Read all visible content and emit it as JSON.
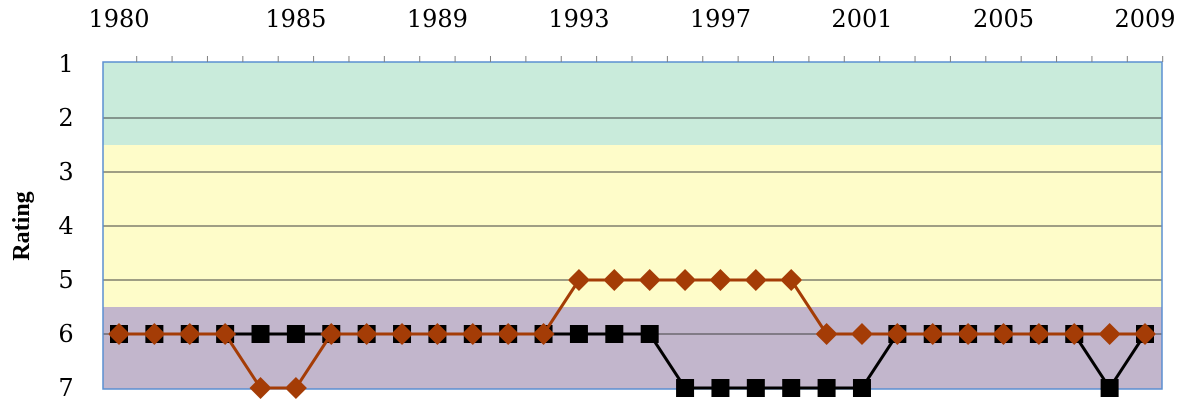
{
  "chart_data": {
    "type": "line",
    "title": "",
    "xlabel": "",
    "ylabel": "Rating",
    "x_range": [
      1980,
      2009
    ],
    "ylim": [
      1,
      7
    ],
    "y_inverted": true,
    "x_tick_labels": [
      "1980",
      "1985",
      "1989",
      "1993",
      "1997",
      "2001",
      "2005",
      "2009"
    ],
    "y_tick_labels": [
      "1",
      "2",
      "3",
      "4",
      "5",
      "6",
      "7"
    ],
    "grid": "horizontal",
    "bands": [
      {
        "from": 1,
        "to": 2.5,
        "color": "#c9ebdb"
      },
      {
        "from": 2.5,
        "to": 5.5,
        "color": "#fefcc9"
      },
      {
        "from": 5.5,
        "to": 7,
        "color": "#c2b6cc"
      }
    ],
    "x": [
      1980,
      1981,
      1982,
      1983,
      1984,
      1985,
      1986,
      1987,
      1988,
      1989,
      1990,
      1991,
      1992,
      1993,
      1994,
      1995,
      1996,
      1997,
      1998,
      1999,
      2000,
      2001,
      2002,
      2003,
      2004,
      2005,
      2006,
      2007,
      2008,
      2009
    ],
    "series": [
      {
        "marker": "square",
        "color": "#000000",
        "values": [
          6,
          6,
          6,
          6,
          6,
          6,
          6,
          6,
          6,
          6,
          6,
          6,
          6,
          6,
          6,
          6,
          7,
          7,
          7,
          7,
          7,
          7,
          6,
          6,
          6,
          6,
          6,
          6,
          7,
          6
        ]
      },
      {
        "marker": "diamond",
        "color": "#a43c06",
        "values": [
          6,
          6,
          6,
          6,
          7,
          7,
          6,
          6,
          6,
          6,
          6,
          6,
          6,
          5,
          5,
          5,
          5,
          5,
          5,
          5,
          6,
          6,
          6,
          6,
          6,
          6,
          6,
          6,
          6,
          6
        ]
      }
    ]
  }
}
